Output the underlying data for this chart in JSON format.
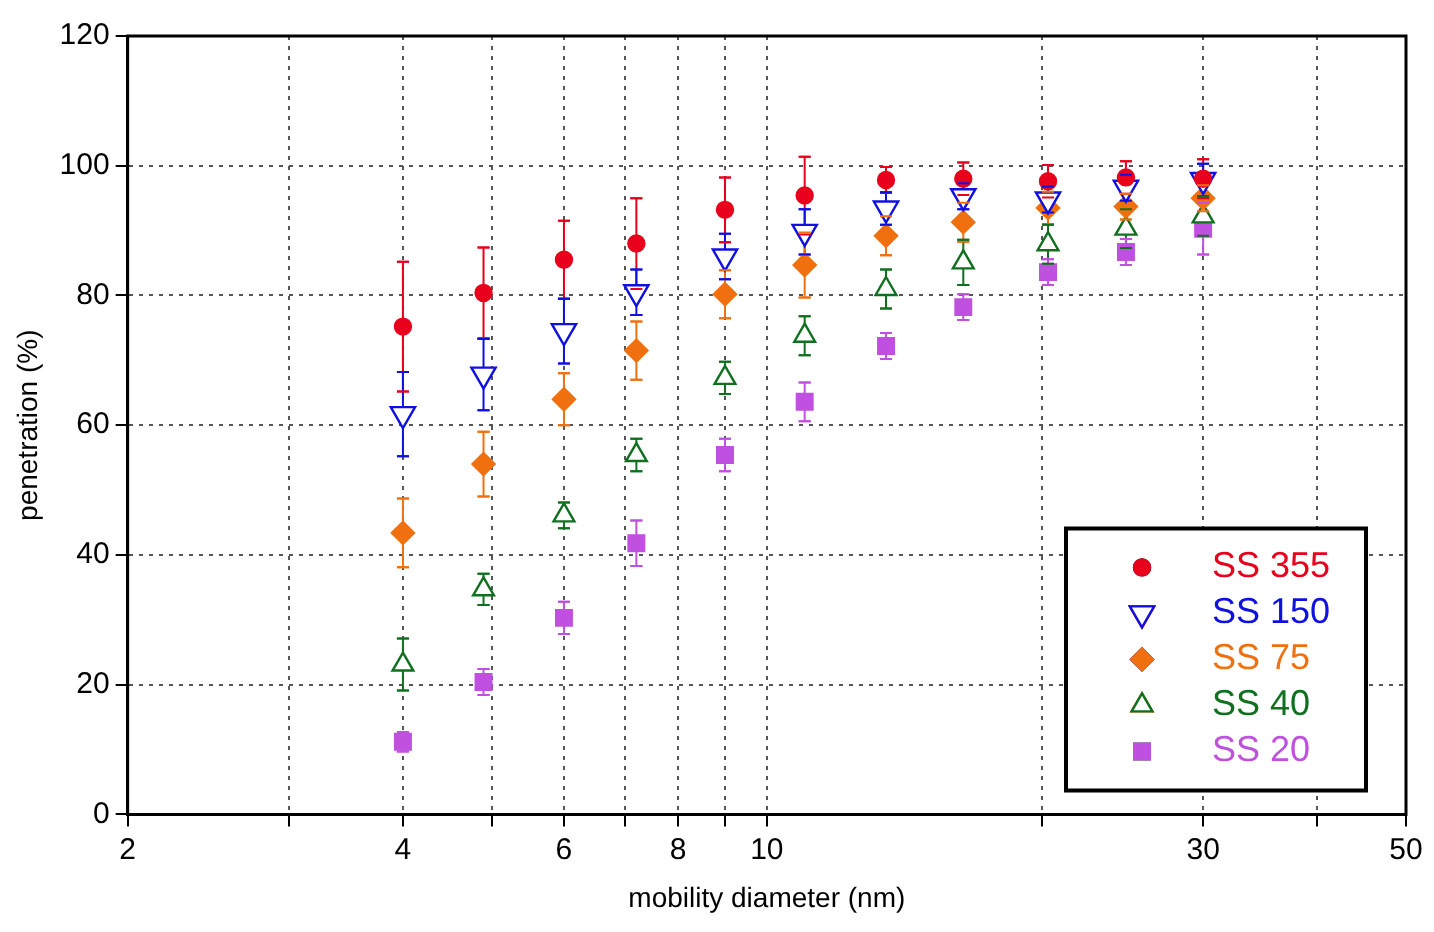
{
  "chart_data": {
    "type": "scatter",
    "xlabel": "mobility diameter (nm)",
    "ylabel": "penetration (%)",
    "log": "x",
    "grid": true,
    "legend": "bottom right",
    "xlim": [
      2,
      50
    ],
    "xticks": [
      2,
      {
        "value": 3,
        "label": null
      },
      4,
      {
        "value": 5,
        "label": null
      },
      6,
      {
        "value": 7,
        "label": null
      },
      8,
      {
        "value": 9,
        "label": null
      },
      10,
      {
        "value": 20,
        "label": null
      },
      30,
      {
        "value": 40,
        "label": null
      },
      50
    ],
    "ylim": [
      0,
      120
    ],
    "yticks": [
      0,
      20,
      40,
      60,
      80,
      100,
      120
    ],
    "x": [
      4,
      4.9,
      6,
      7.2,
      9,
      11,
      13.5,
      16.4,
      20.3,
      24.7,
      30
    ],
    "series": [
      {
        "name": "SS 355",
        "color": "#e8001c",
        "marker": "circle",
        "values": [
          75.2,
          80.4,
          85.5,
          88.0,
          93.2,
          95.4,
          97.8,
          98.0,
          97.6,
          98.2,
          98
        ],
        "errors": [
          10,
          7,
          6,
          7,
          5,
          6,
          2,
          2.5,
          2.5,
          2.5,
          3
        ]
      },
      {
        "name": "SS 150",
        "color": "#1010e0",
        "marker": "triangle-down",
        "values": [
          61.7,
          67.8,
          74.5,
          80.5,
          86.0,
          89.8,
          93.4,
          95.3,
          94.8,
          96.6,
          97.8
        ],
        "errors": [
          6.5,
          5.5,
          5,
          3.5,
          3.5,
          3.5,
          2.5,
          2,
          2,
          2,
          2.5
        ]
      },
      {
        "name": "SS 75",
        "color": "#f07010",
        "marker": "diamond",
        "values": [
          43.4,
          54.0,
          64.0,
          71.5,
          80.2,
          84.7,
          89.2,
          91.3,
          93.5,
          93.7,
          95.0
        ],
        "errors": [
          5.3,
          5,
          4,
          4.5,
          3.7,
          5,
          3,
          3,
          2.5,
          2,
          2
        ]
      },
      {
        "name": "SS 40",
        "color": "#107020",
        "marker": "triangle",
        "values": [
          23.1,
          34.7,
          46.1,
          55.4,
          67.3,
          73.8,
          81.0,
          85.1,
          87.9,
          90.3,
          92.2
        ],
        "errors": [
          4,
          2.4,
          2,
          2.5,
          2.5,
          3,
          3,
          3.5,
          3,
          3,
          3
        ]
      },
      {
        "name": "SS 20",
        "color": "#c050e0",
        "marker": "square",
        "values": [
          11.2,
          20.4,
          30.3,
          41.8,
          55.4,
          63.6,
          72.2,
          78.2,
          83.6,
          86.7,
          90.3
        ],
        "errors": [
          1.5,
          2,
          2.5,
          3.5,
          2.5,
          3,
          2,
          2,
          2,
          2,
          4
        ]
      }
    ]
  }
}
